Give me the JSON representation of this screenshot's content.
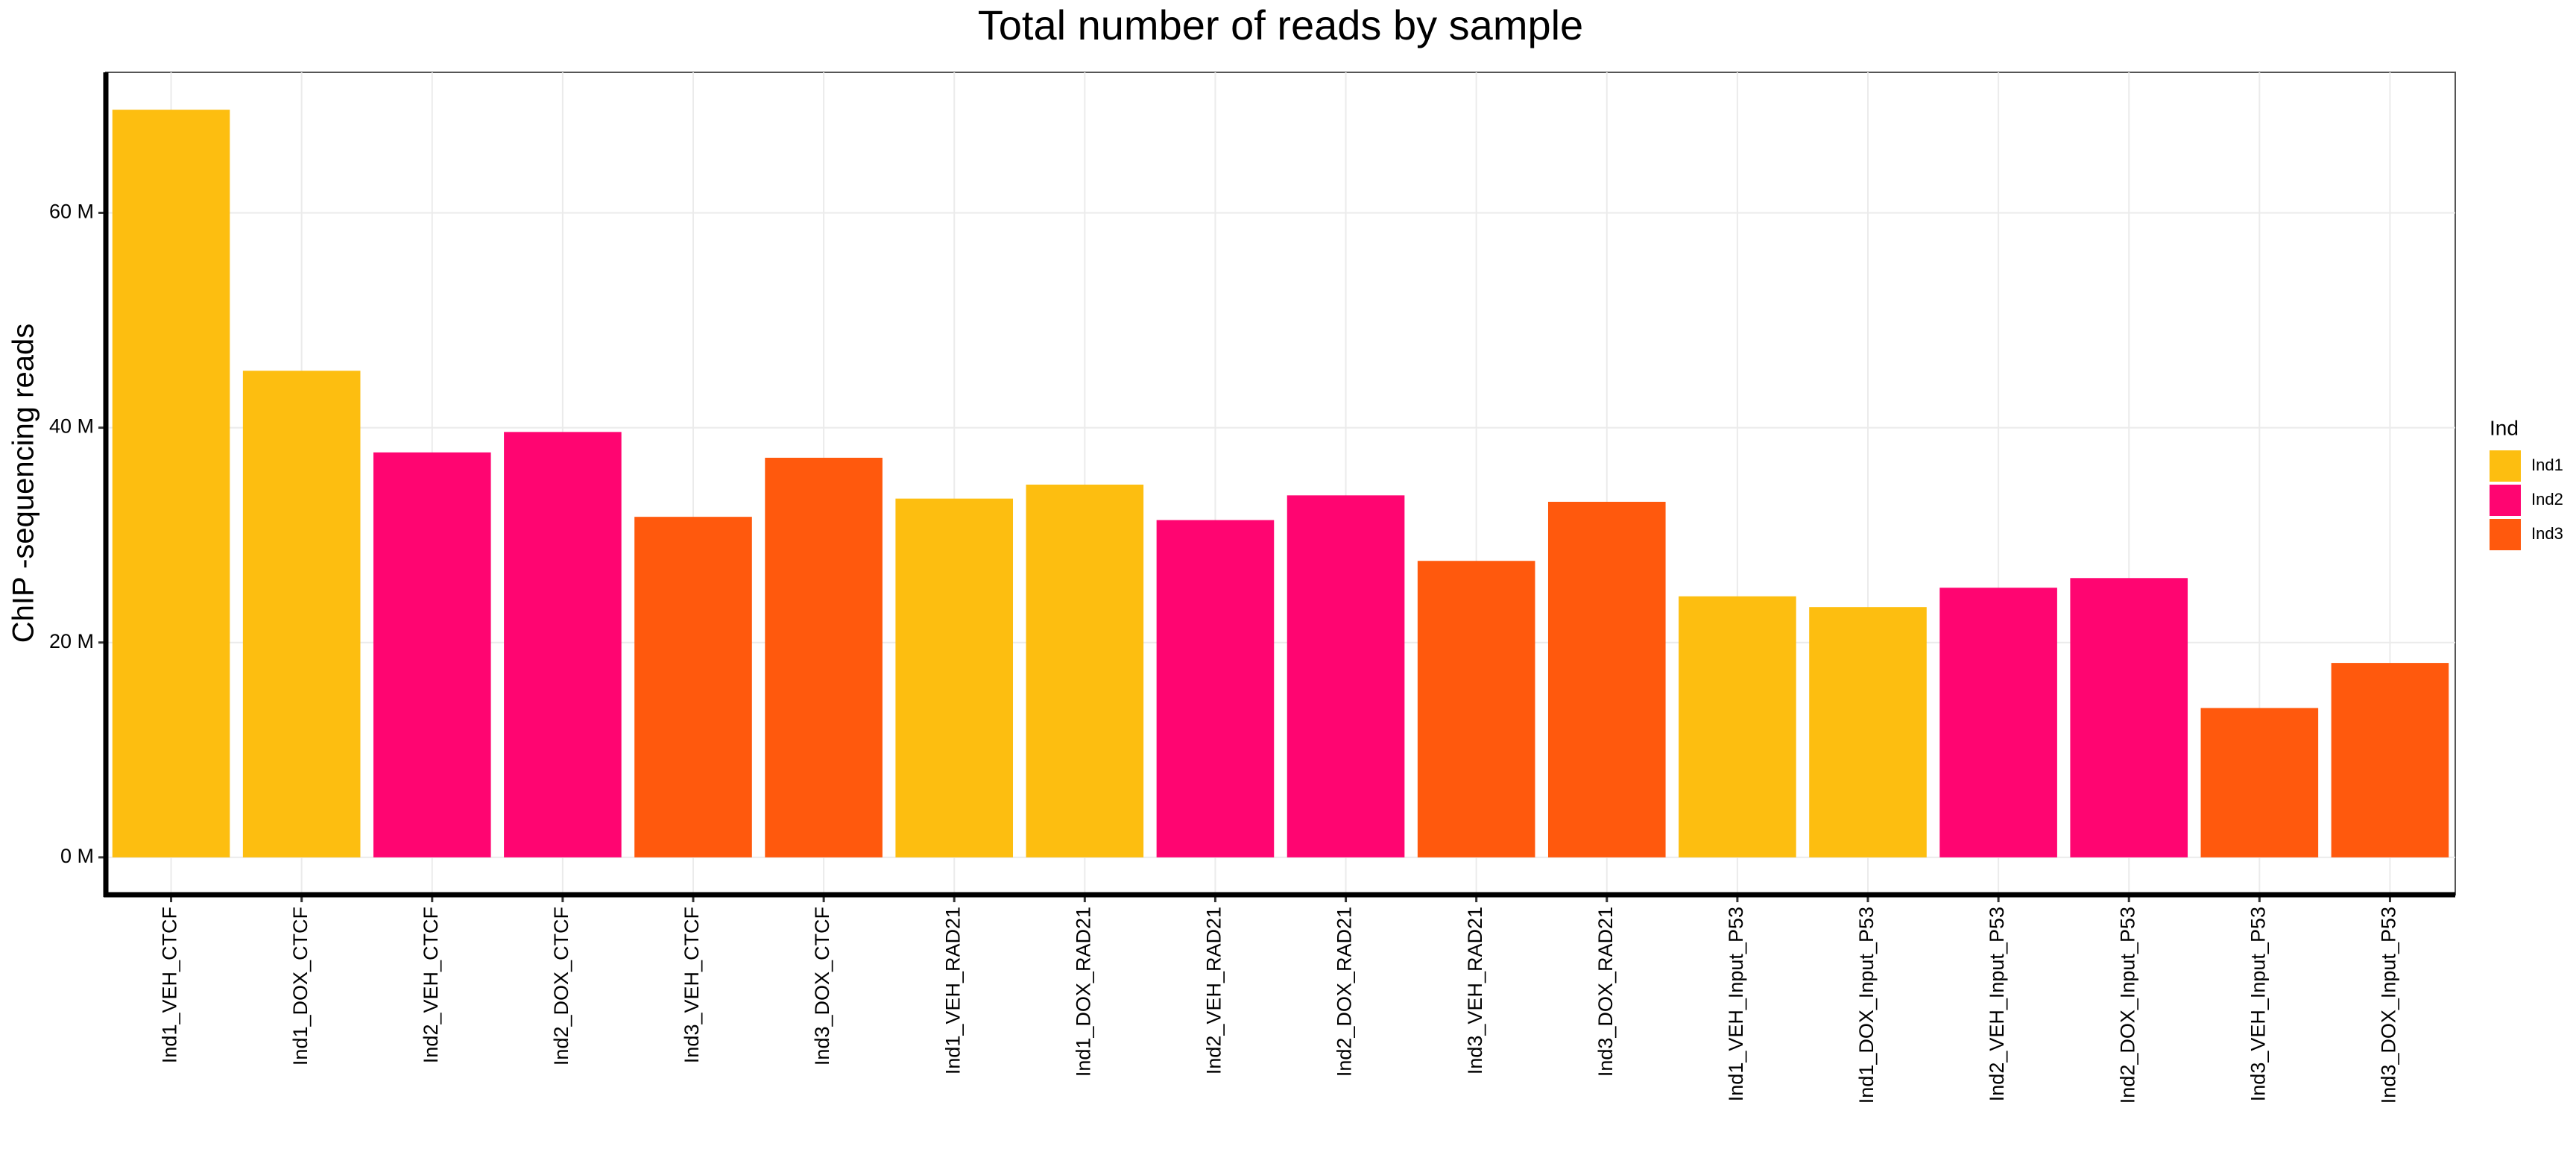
{
  "chart_data": {
    "type": "bar",
    "title": "Total number of reads by sample",
    "y_label": "ChIP -sequencing reads",
    "legend_title": "Ind",
    "legend": "right",
    "grid": true,
    "categories": [
      "Ind1_VEH_CTCF",
      "Ind1_DOX_CTCF",
      "Ind2_VEH_CTCF",
      "Ind2_DOX_CTCF",
      "Ind3_VEH_CTCF",
      "Ind3_DOX_CTCF",
      "Ind1_VEH_RAD21",
      "Ind1_DOX_RAD21",
      "Ind2_VEH_RAD21",
      "Ind2_DOX_RAD21",
      "Ind3_VEH_RAD21",
      "Ind3_DOX_RAD21",
      "Ind1_VEH_Input_P53",
      "Ind1_DOX_Input_P53",
      "Ind2_VEH_Input_P53",
      "Ind2_DOX_Input_P53",
      "Ind3_VEH_Input_P53",
      "Ind3_DOX_Input_P53"
    ],
    "series": [
      {
        "name": "Ind1",
        "color": "#FDBE10",
        "values": [
          69.6,
          45.3,
          null,
          null,
          null,
          null,
          33.4,
          34.7,
          null,
          null,
          null,
          null,
          24.3,
          23.3,
          null,
          null,
          null,
          null
        ]
      },
      {
        "name": "Ind2",
        "color": "#FF0571",
        "values": [
          null,
          null,
          37.7,
          39.6,
          null,
          null,
          null,
          null,
          31.4,
          33.7,
          null,
          null,
          null,
          null,
          25.1,
          26.0,
          null,
          null
        ]
      },
      {
        "name": "Ind3",
        "color": "#FF590D",
        "values": [
          null,
          null,
          null,
          null,
          31.7,
          37.2,
          null,
          null,
          null,
          null,
          27.6,
          33.1,
          null,
          null,
          null,
          null,
          13.9,
          18.1
        ]
      }
    ],
    "ylim": [
      -3.48,
      73.08
    ],
    "yticks": [
      {
        "value": 0,
        "label": "0 M"
      },
      {
        "value": 20,
        "label": "20 M"
      },
      {
        "value": 40,
        "label": "40 M"
      },
      {
        "value": 60,
        "label": "60 M"
      }
    ]
  }
}
